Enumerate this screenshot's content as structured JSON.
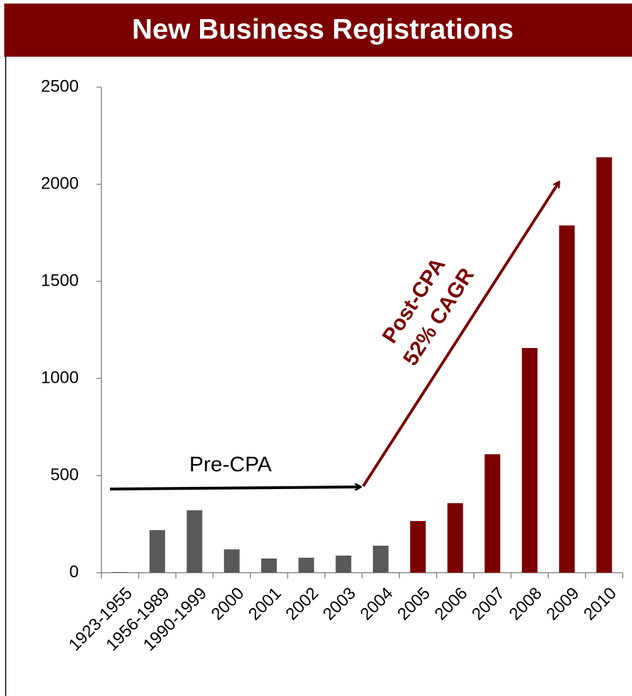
{
  "chart_data": {
    "type": "bar",
    "title": "New Business Registrations",
    "categories": [
      "1923-1955",
      "1956-1989",
      "1990-1999",
      "2000",
      "2001",
      "2002",
      "2003",
      "2004",
      "2005",
      "2006",
      "2007",
      "2008",
      "2009",
      "2010"
    ],
    "values": [
      3,
      219,
      321,
      120,
      73,
      77,
      88,
      139,
      266,
      358,
      610,
      1157,
      1788,
      2139
    ],
    "colors": [
      "#595959",
      "#595959",
      "#595959",
      "#595959",
      "#595959",
      "#595959",
      "#595959",
      "#595959",
      "#7b0000",
      "#7b0000",
      "#7b0000",
      "#7b0000",
      "#7b0000",
      "#7b0000"
    ],
    "ylim": [
      0,
      2500
    ],
    "yticks": [
      0,
      500,
      1000,
      1500,
      2000,
      2500
    ],
    "annotations": [
      {
        "text": "Pre-CPA",
        "color": "#000000"
      },
      {
        "text": "Post-CPA",
        "color": "#7b0000"
      },
      {
        "text": "52% CAGR",
        "color": "#7b0000"
      }
    ]
  }
}
